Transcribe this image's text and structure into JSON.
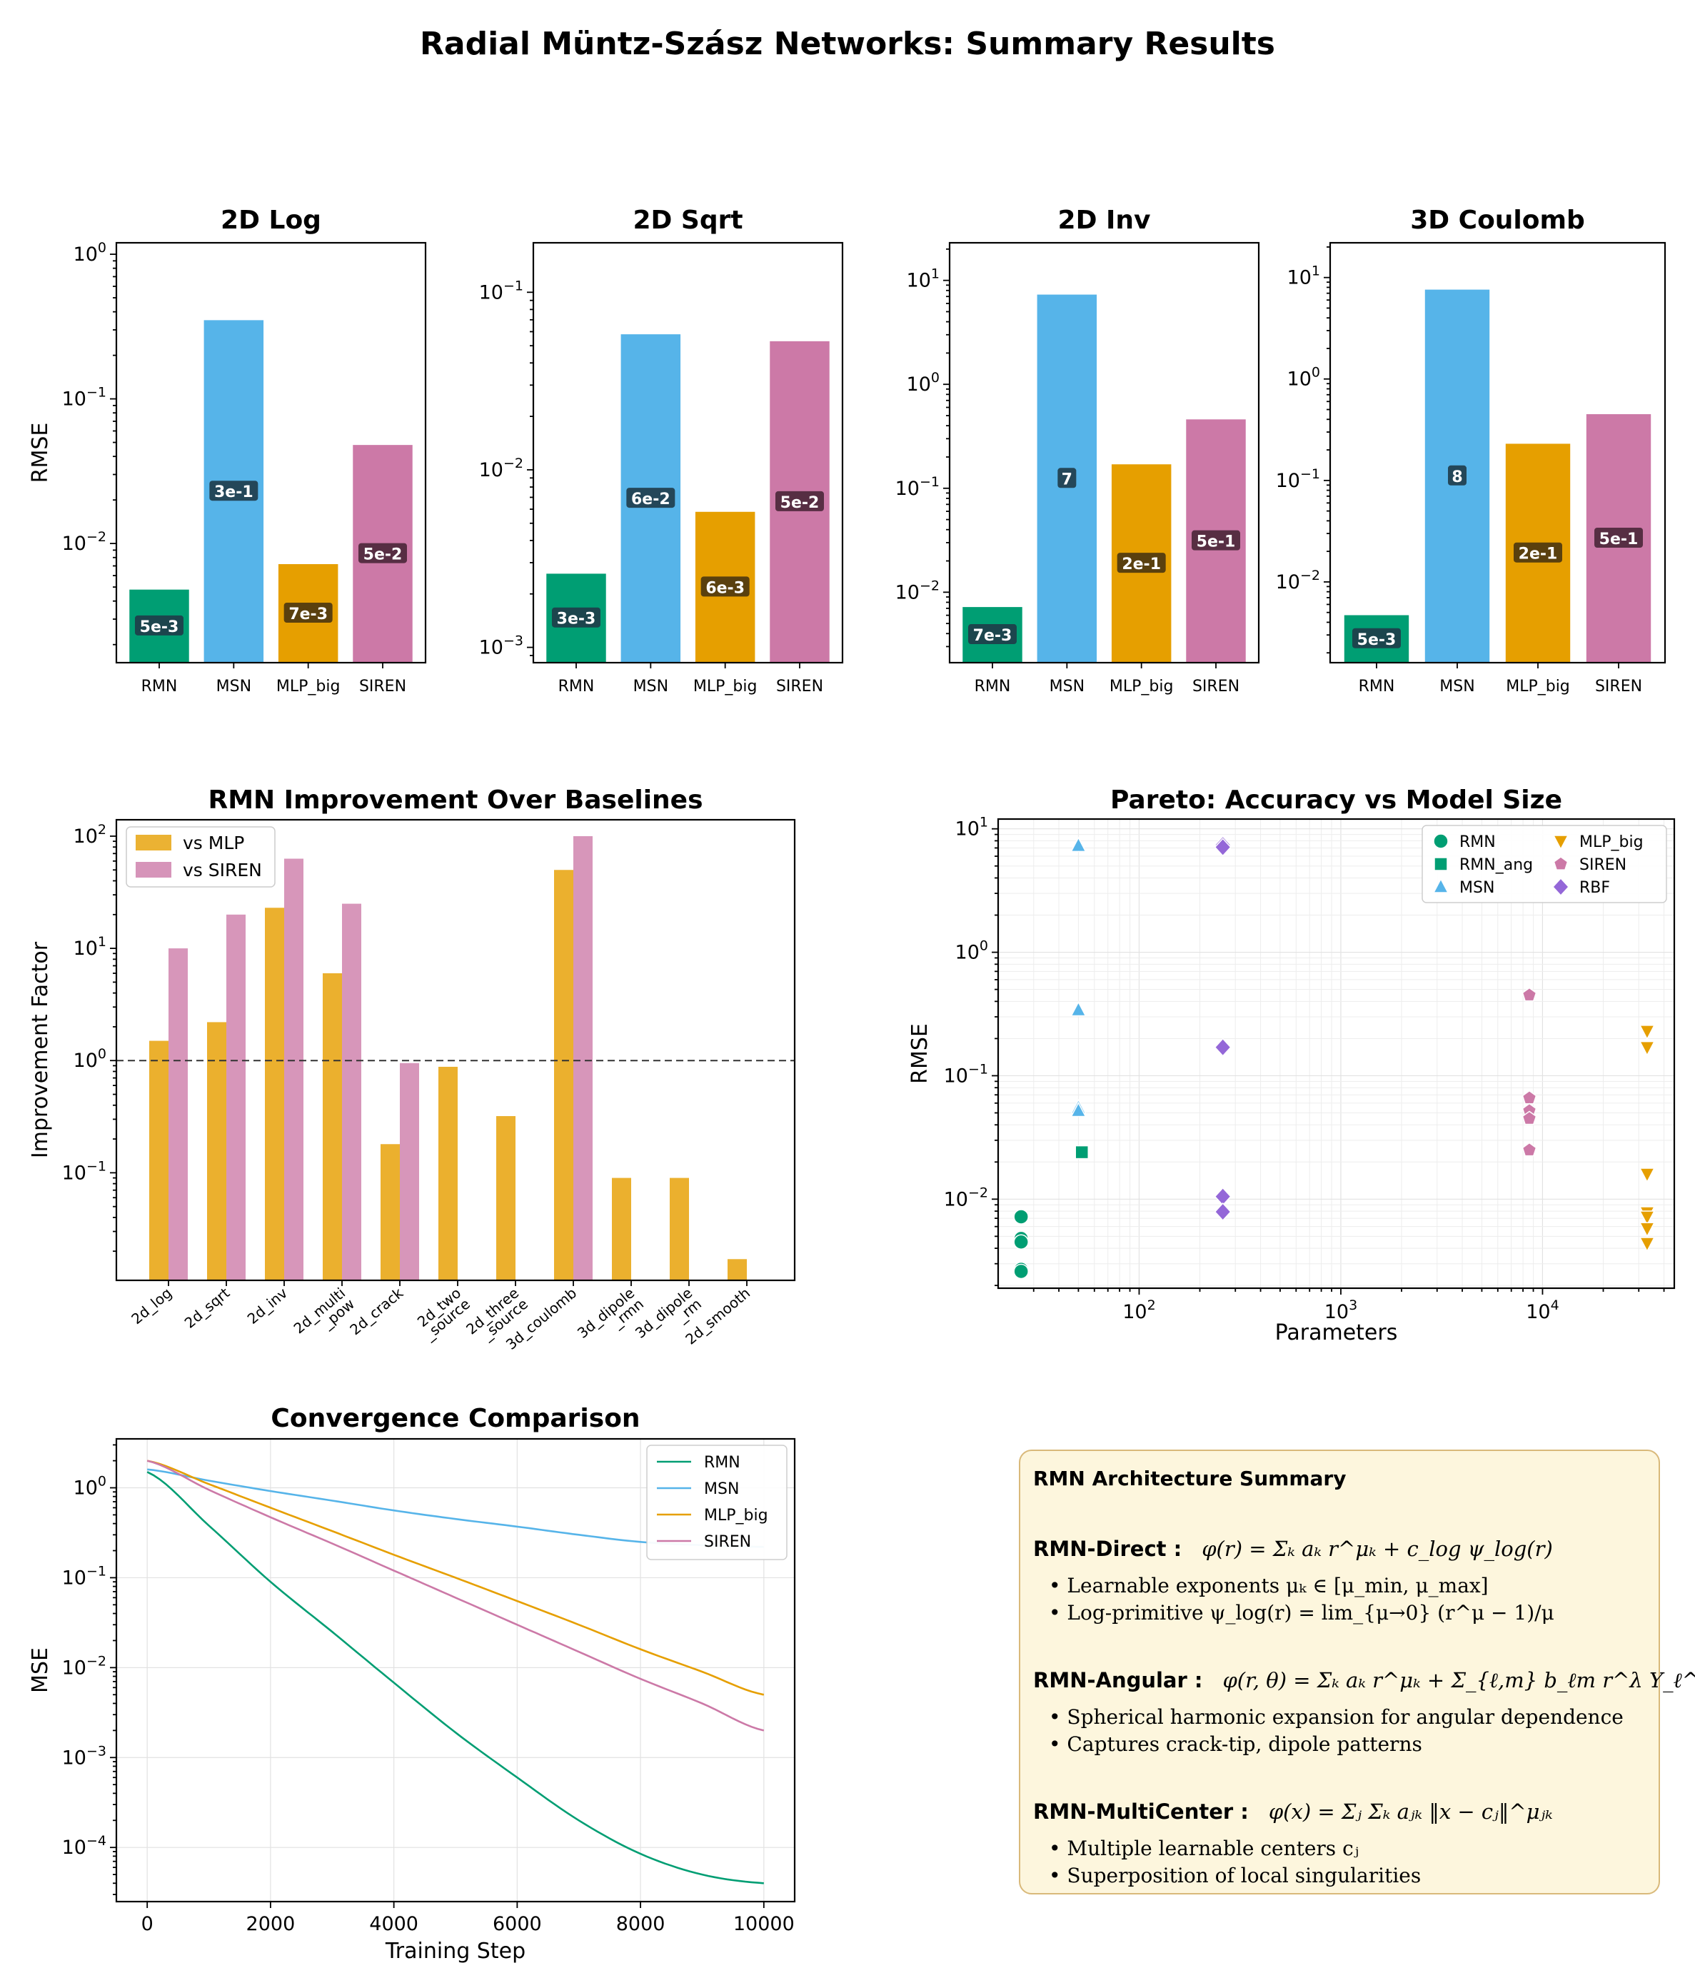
{
  "suptitle": "Radial Müntz-Szász Networks: Summary Results",
  "colors": {
    "rmn": "#009E73",
    "msn": "#56B4E9",
    "mlp": "#E69F00",
    "siren": "#CC79A7",
    "rbf": "#9467D8",
    "label_box": "#1f3b49",
    "label_box_mlp": "#4a3510",
    "label_box_siren": "#4a2638",
    "summary_bg": "#fdf6dd"
  },
  "chart_data": [
    {
      "id": "2d_log",
      "type": "bar",
      "title": "2D Log",
      "ylabel": "RMSE",
      "yscale": "log",
      "ylim": [
        0.0015,
        1.2
      ],
      "categories": [
        "RMN",
        "MSN",
        "MLP_big",
        "SIREN"
      ],
      "values": [
        0.0048,
        0.35,
        0.0072,
        0.048
      ],
      "labels": [
        "5e-3",
        "3e-1",
        "7e-3",
        "5e-2"
      ],
      "yticks": [
        {
          "v": 1,
          "t": "10",
          "e": "0"
        },
        {
          "v": 0.1,
          "t": "10",
          "e": "−1"
        },
        {
          "v": 0.01,
          "t": "10",
          "e": "−2"
        }
      ]
    },
    {
      "id": "2d_sqrt",
      "type": "bar",
      "title": "2D Sqrt",
      "ylabel": "",
      "yscale": "log",
      "ylim": [
        0.00082,
        0.19
      ],
      "categories": [
        "RMN",
        "MSN",
        "MLP_big",
        "SIREN"
      ],
      "values": [
        0.0026,
        0.058,
        0.0058,
        0.053
      ],
      "labels": [
        "3e-3",
        "6e-2",
        "6e-3",
        "5e-2"
      ],
      "yticks": [
        {
          "v": 0.1,
          "t": "10",
          "e": "−1"
        },
        {
          "v": 0.01,
          "t": "10",
          "e": "−2"
        },
        {
          "v": 0.001,
          "t": "10",
          "e": "−3"
        }
      ]
    },
    {
      "id": "2d_inv",
      "type": "bar",
      "title": "2D Inv",
      "ylabel": "",
      "yscale": "log",
      "ylim": [
        0.0021,
        23
      ],
      "categories": [
        "RMN",
        "MSN",
        "MLP_big",
        "SIREN"
      ],
      "values": [
        0.0072,
        7.3,
        0.17,
        0.46
      ],
      "labels": [
        "7e-3",
        "7",
        "2e-1",
        "5e-1"
      ],
      "yticks": [
        {
          "v": 10,
          "t": "10",
          "e": "1"
        },
        {
          "v": 1,
          "t": "10",
          "e": "0"
        },
        {
          "v": 0.1,
          "t": "10",
          "e": "−1"
        },
        {
          "v": 0.01,
          "t": "10",
          "e": "−2"
        }
      ]
    },
    {
      "id": "3d_coulomb",
      "type": "bar",
      "title": "3D Coulomb",
      "ylabel": "",
      "yscale": "log",
      "ylim": [
        0.0016,
        22
      ],
      "categories": [
        "RMN",
        "MSN",
        "MLP_big",
        "SIREN"
      ],
      "values": [
        0.0047,
        7.6,
        0.23,
        0.45
      ],
      "labels": [
        "5e-3",
        "8",
        "2e-1",
        "5e-1"
      ],
      "yticks": [
        {
          "v": 10,
          "t": "10",
          "e": "1"
        },
        {
          "v": 1,
          "t": "10",
          "e": "0"
        },
        {
          "v": 0.1,
          "t": "10",
          "e": "−1"
        },
        {
          "v": 0.01,
          "t": "10",
          "e": "−2"
        }
      ]
    },
    {
      "id": "improvement",
      "type": "bar",
      "title": "RMN Improvement Over Baselines",
      "ylabel": "Improvement Factor",
      "yscale": "log",
      "ylim": [
        0.011,
        140
      ],
      "reference_line": 1,
      "categories": [
        "2d_log",
        "2d_sqrt",
        "2d_inv",
        "2d_multi\n_pow",
        "2d_crack",
        "2d_two\n_source",
        "2d_three\n_source",
        "3d_coulomb",
        "3d_dipole\n_rmn",
        "3d_dipole\n_rm",
        "2d_smooth"
      ],
      "series": [
        {
          "name": "vs MLP",
          "values": [
            1.5,
            2.2,
            23,
            6.0,
            0.18,
            0.88,
            0.32,
            50,
            0.09,
            0.09,
            0.017
          ]
        },
        {
          "name": "vs SIREN",
          "values": [
            10,
            20,
            63,
            25,
            0.95,
            null,
            null,
            100,
            null,
            null,
            null
          ]
        }
      ],
      "yticks": [
        {
          "v": 100,
          "t": "10",
          "e": "2"
        },
        {
          "v": 10,
          "t": "10",
          "e": "1"
        },
        {
          "v": 1,
          "t": "10",
          "e": "0"
        },
        {
          "v": 0.1,
          "t": "10",
          "e": "−1"
        }
      ]
    },
    {
      "id": "pareto",
      "type": "scatter",
      "title": "Pareto: Accuracy vs Model Size",
      "xlabel": "Parameters",
      "ylabel": "RMSE",
      "xscale": "log",
      "yscale": "log",
      "xlim": [
        20,
        45000
      ],
      "ylim": [
        0.0019,
        12
      ],
      "legend_location": "top-right",
      "series": [
        {
          "name": "RMN",
          "marker": "circle",
          "points": [
            [
              26,
              0.0072
            ],
            [
              26,
              0.0048
            ],
            [
              26,
              0.0045
            ],
            [
              26,
              0.0027
            ],
            [
              26,
              0.0026
            ]
          ]
        },
        {
          "name": "RMN_ang",
          "marker": "square",
          "points": [
            [
              52,
              0.024
            ]
          ]
        },
        {
          "name": "MSN",
          "marker": "triangle-up",
          "points": [
            [
              50,
              7.3
            ],
            [
              50,
              0.34
            ],
            [
              50,
              0.055
            ],
            [
              50,
              0.052
            ]
          ]
        },
        {
          "name": "MLP_big",
          "marker": "triangle-down",
          "points": [
            [
              33000,
              0.23
            ],
            [
              33000,
              0.17
            ],
            [
              33000,
              0.016
            ],
            [
              33000,
              0.0078
            ],
            [
              33000,
              0.0072
            ],
            [
              33000,
              0.0058
            ],
            [
              33000,
              0.0044
            ]
          ]
        },
        {
          "name": "SIREN",
          "marker": "pentagon",
          "points": [
            [
              8600,
              0.45
            ],
            [
              8600,
              0.066
            ],
            [
              8600,
              0.052
            ],
            [
              8600,
              0.045
            ],
            [
              8600,
              0.025
            ]
          ]
        },
        {
          "name": "RBF",
          "marker": "diamond",
          "points": [
            [
              260,
              7.4
            ],
            [
              260,
              7.1
            ],
            [
              260,
              0.17
            ],
            [
              260,
              0.0105
            ],
            [
              260,
              0.0079
            ]
          ]
        }
      ],
      "xticks": [
        {
          "v": 100,
          "t": "10",
          "e": "2"
        },
        {
          "v": 1000,
          "t": "10",
          "e": "3"
        },
        {
          "v": 10000,
          "t": "10",
          "e": "4"
        }
      ],
      "yticks": [
        {
          "v": 10,
          "t": "10",
          "e": "1"
        },
        {
          "v": 1,
          "t": "10",
          "e": "0"
        },
        {
          "v": 0.1,
          "t": "10",
          "e": "−1"
        },
        {
          "v": 0.01,
          "t": "10",
          "e": "−2"
        }
      ]
    },
    {
      "id": "convergence",
      "type": "line",
      "title": "Convergence Comparison",
      "xlabel": "Training Step",
      "ylabel": "MSE",
      "yscale": "log",
      "xlim": [
        -500,
        10500
      ],
      "ylim": [
        2.5e-05,
        3.5
      ],
      "x": [
        0,
        1000,
        2000,
        3000,
        4000,
        5000,
        6000,
        7000,
        8000,
        9000,
        10000
      ],
      "series": [
        {
          "name": "RMN",
          "values": [
            1.5,
            0.38,
            0.09,
            0.025,
            0.0068,
            0.0019,
            0.0006,
            0.0002,
            8.5e-05,
            5e-05,
            4e-05
          ]
        },
        {
          "name": "MSN",
          "values": [
            1.6,
            1.2,
            0.92,
            0.72,
            0.56,
            0.45,
            0.37,
            0.3,
            0.25,
            0.23,
            0.22
          ]
        },
        {
          "name": "MLP_big",
          "values": [
            2.0,
            1.1,
            0.6,
            0.33,
            0.18,
            0.1,
            0.055,
            0.03,
            0.016,
            0.009,
            0.005
          ]
        },
        {
          "name": "SIREN",
          "values": [
            2.0,
            0.95,
            0.47,
            0.24,
            0.12,
            0.06,
            0.03,
            0.015,
            0.0075,
            0.004,
            0.002
          ]
        }
      ],
      "xticks": [
        "0",
        "2000",
        "4000",
        "6000",
        "8000",
        "10000"
      ],
      "yticks": [
        {
          "v": 1,
          "t": "10",
          "e": "0"
        },
        {
          "v": 0.1,
          "t": "10",
          "e": "−1"
        },
        {
          "v": 0.01,
          "t": "10",
          "e": "−2"
        },
        {
          "v": 0.001,
          "t": "10",
          "e": "−3"
        },
        {
          "v": 0.0001,
          "t": "10",
          "e": "−4"
        }
      ]
    }
  ],
  "summary": {
    "title": "RMN Architecture Summary",
    "direct": {
      "name": "RMN-Direct :",
      "equation": "φ(r) = Σₖ aₖ r^μₖ + c_log ψ_log(r)",
      "bullets": [
        "Learnable exponents μₖ ∈ [μ_min, μ_max]",
        "Log-primitive ψ_log(r) = lim_{μ→0} (r^μ − 1)/μ"
      ]
    },
    "angular": {
      "name": "RMN-Angular :",
      "equation": "φ(r, θ) = Σₖ aₖ r^μₖ + Σ_{ℓ,m} b_ℓm r^λ Y_ℓ^m",
      "bullets": [
        "Spherical harmonic expansion for angular dependence",
        "Captures crack-tip, dipole patterns"
      ]
    },
    "multicenter": {
      "name": "RMN-MultiCenter :",
      "equation": "φ(x) = Σⱼ Σₖ aⱼₖ ‖x − cⱼ‖^μⱼₖ",
      "bullets": [
        "Multiple learnable centers cⱼ",
        "Superposition of local singularities"
      ]
    }
  }
}
